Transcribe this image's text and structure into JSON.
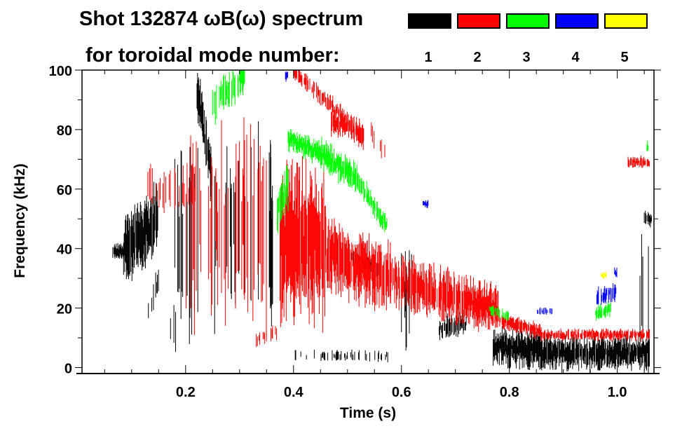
{
  "chart_data": {
    "type": "heatmap",
    "title_line1": "Shot 132874 ωB(ω) spectrum",
    "title_line2": "for toroidal mode number:",
    "xlabel": "Time (s)",
    "ylabel": "Frequency (kHz)",
    "xlim": [
      0.008,
      1.068
    ],
    "ylim": [
      -2,
      100
    ],
    "xticks": [
      {
        "v": 0.2,
        "label": "0.2"
      },
      {
        "v": 0.4,
        "label": "0.4"
      },
      {
        "v": 0.6,
        "label": "0.6"
      },
      {
        "v": 0.8,
        "label": "0.8"
      },
      {
        "v": 1.0,
        "label": "1.0"
      }
    ],
    "yticks": [
      {
        "v": 0,
        "label": "0"
      },
      {
        "v": 20,
        "label": "20"
      },
      {
        "v": 40,
        "label": "40"
      },
      {
        "v": 60,
        "label": "60"
      },
      {
        "v": 80,
        "label": "80"
      },
      {
        "v": 100,
        "label": "100"
      }
    ],
    "legend_placement": "top-right",
    "series": [
      {
        "name": "1",
        "color": "#000000",
        "features": [
          {
            "t": [
              0.065,
              0.085
            ],
            "f": [
              39,
              39
            ],
            "w": 4,
            "d": 0.9
          },
          {
            "t": [
              0.085,
              0.15
            ],
            "f": [
              40,
              50
            ],
            "w": 18,
            "d": 0.9
          },
          {
            "t": [
              0.13,
              0.15
            ],
            "f": [
              18,
              30
            ],
            "w": 8,
            "d": 0.4
          },
          {
            "t": [
              0.22,
              0.25
            ],
            "f": [
              95,
              62
            ],
            "w": 14,
            "d": 0.9
          },
          {
            "t": [
              0.18,
              0.37
            ],
            "f": [
              45,
              45
            ],
            "w": 50,
            "d": 0.12
          },
          {
            "t": [
              0.17,
              0.19
            ],
            "f": [
              10,
              15
            ],
            "w": 14,
            "d": 0.3
          },
          {
            "t": [
              0.355,
              0.362
            ],
            "f": [
              40,
              40
            ],
            "w": 50,
            "d": 1
          },
          {
            "t": [
              0.4,
              0.58
            ],
            "f": [
              4,
              4
            ],
            "w": 3,
            "d": 0.2
          },
          {
            "t": [
              0.5,
              0.56
            ],
            "f": [
              38,
              33
            ],
            "w": 4,
            "d": 0.5
          },
          {
            "t": [
              0.6,
              0.62
            ],
            "f": [
              25,
              25
            ],
            "w": 25,
            "d": 0.4
          },
          {
            "t": [
              0.67,
              0.72
            ],
            "f": [
              13,
              15
            ],
            "w": 6,
            "d": 0.7
          },
          {
            "t": [
              0.77,
              0.86
            ],
            "f": [
              7,
              6
            ],
            "w": 10,
            "d": 1
          },
          {
            "t": [
              0.86,
              1.06
            ],
            "f": [
              5,
              5
            ],
            "w": 9,
            "d": 0.95
          },
          {
            "t": [
              1.05,
              1.065
            ],
            "f": [
              50,
              50
            ],
            "w": 4,
            "d": 0.5
          },
          {
            "t": [
              1.04,
              1.06
            ],
            "f": [
              25,
              25
            ],
            "w": 40,
            "d": 0.15
          }
        ]
      },
      {
        "name": "2",
        "color": "#ff0000",
        "features": [
          {
            "t": [
              0.13,
              0.22
            ],
            "f": [
              60,
              60
            ],
            "w": 12,
            "d": 0.3
          },
          {
            "t": [
              0.2,
              0.35
            ],
            "f": [
              45,
              45
            ],
            "w": 50,
            "d": 0.25
          },
          {
            "t": [
              0.33,
              0.37
            ],
            "f": [
              9,
              12
            ],
            "w": 4,
            "d": 0.4
          },
          {
            "t": [
              0.375,
              0.46
            ],
            "f": [
              42,
              40
            ],
            "w": 40,
            "d": 0.95
          },
          {
            "t": [
              0.46,
              0.58
            ],
            "f": [
              38,
              30
            ],
            "w": 18,
            "d": 0.9
          },
          {
            "t": [
              0.58,
              0.72
            ],
            "f": [
              30,
              22
            ],
            "w": 14,
            "d": 0.85
          },
          {
            "t": [
              0.72,
              0.78
            ],
            "f": [
              22,
              20
            ],
            "w": 12,
            "d": 1
          },
          {
            "t": [
              0.78,
              0.86
            ],
            "f": [
              16,
              12
            ],
            "w": 4,
            "d": 0.9
          },
          {
            "t": [
              0.86,
              1.06
            ],
            "f": [
              11,
              11
            ],
            "w": 3,
            "d": 0.8
          },
          {
            "t": [
              0.4,
              0.53
            ],
            "f": [
              100,
              78
            ],
            "w": 5,
            "d": 0.6
          },
          {
            "t": [
              0.47,
              0.53
            ],
            "f": [
              83,
              78
            ],
            "w": 7,
            "d": 0.9
          },
          {
            "t": [
              1.02,
              1.06
            ],
            "f": [
              69,
              69
            ],
            "w": 3,
            "d": 0.9
          },
          {
            "t": [
              0.54,
              0.58
            ],
            "f": [
              80,
              70
            ],
            "w": 6,
            "d": 0.2
          }
        ]
      },
      {
        "name": "3",
        "color": "#00ff00",
        "features": [
          {
            "t": [
              0.25,
              0.31
            ],
            "f": [
              88,
              98
            ],
            "w": 10,
            "d": 0.6
          },
          {
            "t": [
              0.37,
              0.39
            ],
            "f": [
              52,
              62
            ],
            "w": 12,
            "d": 0.8
          },
          {
            "t": [
              0.39,
              0.45
            ],
            "f": [
              77,
              72
            ],
            "w": 6,
            "d": 0.95
          },
          {
            "t": [
              0.45,
              0.52
            ],
            "f": [
              72,
              63
            ],
            "w": 8,
            "d": 0.95
          },
          {
            "t": [
              0.52,
              0.575
            ],
            "f": [
              63,
              47
            ],
            "w": 6,
            "d": 0.9
          },
          {
            "t": [
              0.76,
              0.8
            ],
            "f": [
              20,
              17
            ],
            "w": 3,
            "d": 0.5
          },
          {
            "t": [
              0.96,
              0.99
            ],
            "f": [
              18,
              20
            ],
            "w": 4,
            "d": 0.6
          },
          {
            "t": [
              1.055,
              1.062
            ],
            "f": [
              74,
              74
            ],
            "w": 3,
            "d": 0.8
          }
        ]
      },
      {
        "name": "4",
        "color": "#0000ff",
        "features": [
          {
            "t": [
              0.385,
              0.39
            ],
            "f": [
              98,
              98
            ],
            "w": 3,
            "d": 1
          },
          {
            "t": [
              0.64,
              0.65
            ],
            "f": [
              55,
              55
            ],
            "w": 2,
            "d": 1
          },
          {
            "t": [
              0.85,
              0.88
            ],
            "f": [
              19,
              19
            ],
            "w": 2,
            "d": 0.6
          },
          {
            "t": [
              0.96,
              1.0
            ],
            "f": [
              23,
              26
            ],
            "w": 5,
            "d": 0.8
          },
          {
            "t": [
              0.995,
              1.0
            ],
            "f": [
              32,
              32
            ],
            "w": 3,
            "d": 1
          }
        ]
      },
      {
        "name": "5",
        "color": "#ffff00",
        "features": [
          {
            "t": [
              0.97,
              0.98
            ],
            "f": [
              31,
              31
            ],
            "w": 2,
            "d": 1
          }
        ]
      }
    ]
  }
}
